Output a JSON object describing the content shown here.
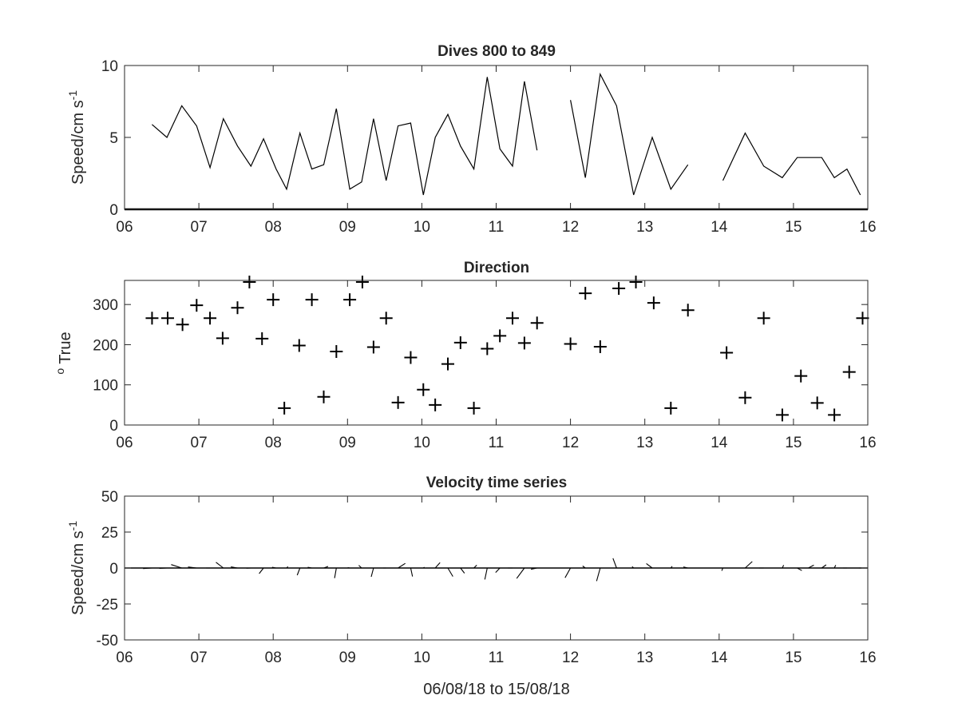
{
  "chart_data": [
    {
      "type": "line",
      "title": "Dives 800 to 849",
      "ylabel": "Speed/cm s",
      "ylabel_sup": "-1",
      "xlabel": "",
      "xlim": [
        6,
        16
      ],
      "ylim": [
        0,
        10
      ],
      "xticks": [
        "06",
        "07",
        "08",
        "09",
        "10",
        "11",
        "12",
        "13",
        "14",
        "15",
        "16"
      ],
      "yticks": [
        "0",
        "5",
        "10"
      ],
      "grid": false,
      "segments": [
        {
          "x": [
            6.37,
            6.57,
            6.77,
            6.97,
            7.15,
            7.33,
            7.52,
            7.7,
            7.87,
            8.04,
            8.18,
            8.36,
            8.52,
            8.68,
            8.85,
            9.03,
            9.19,
            9.35,
            9.52,
            9.68,
            9.85,
            10.02,
            10.18,
            10.35,
            10.52,
            10.7,
            10.88,
            11.05,
            11.22,
            11.38,
            11.55
          ],
          "y": [
            5.9,
            5.0,
            7.2,
            5.8,
            2.9,
            6.3,
            4.4,
            3.0,
            4.9,
            2.8,
            1.4,
            5.3,
            2.8,
            3.1,
            7.0,
            1.4,
            1.9,
            6.3,
            2.0,
            5.8,
            6.0,
            1.0,
            5.0,
            6.6,
            4.4,
            2.8,
            9.2,
            4.2,
            3.0,
            8.9,
            4.1
          ]
        },
        {
          "x": [
            12.0,
            12.2,
            12.4,
            12.62,
            12.85,
            13.1,
            13.35,
            13.58
          ],
          "y": [
            7.6,
            2.2,
            9.4,
            7.2,
            1.0,
            5.0,
            1.4,
            3.1
          ]
        },
        {
          "x": [
            14.05,
            14.35,
            14.6,
            14.85,
            15.05,
            15.2,
            15.38,
            15.55,
            15.72,
            15.9
          ],
          "y": [
            2.0,
            5.3,
            3.0,
            2.2,
            3.6,
            3.6,
            3.6,
            2.2,
            2.8,
            1.0
          ]
        }
      ]
    },
    {
      "type": "scatter",
      "title": "Direction",
      "ylabel": "True",
      "ylabel_sup": "o",
      "xlabel": "",
      "xlim": [
        6,
        16
      ],
      "ylim": [
        0,
        360
      ],
      "xticks": [
        "06",
        "07",
        "08",
        "09",
        "10",
        "11",
        "12",
        "13",
        "14",
        "15",
        "16"
      ],
      "yticks": [
        "0",
        "100",
        "200",
        "300"
      ],
      "grid": false,
      "x": [
        6.37,
        6.58,
        6.78,
        6.97,
        7.15,
        7.32,
        7.52,
        7.68,
        7.85,
        8.0,
        8.15,
        8.35,
        8.52,
        8.68,
        8.85,
        9.03,
        9.2,
        9.35,
        9.52,
        9.68,
        9.85,
        10.02,
        10.18,
        10.35,
        10.52,
        10.7,
        10.88,
        11.05,
        11.22,
        11.38,
        11.55,
        12.0,
        12.2,
        12.4,
        12.65,
        12.88,
        13.12,
        13.35,
        13.58,
        14.1,
        14.35,
        14.6,
        14.85,
        15.1,
        15.32,
        15.55,
        15.75,
        15.93
      ],
      "y": [
        266,
        266,
        250,
        298,
        266,
        216,
        292,
        356,
        215,
        312,
        42,
        198,
        312,
        70,
        183,
        312,
        356,
        194,
        266,
        56,
        168,
        88,
        50,
        152,
        205,
        42,
        190,
        222,
        266,
        204,
        254,
        202,
        328,
        195,
        340,
        356,
        304,
        42,
        286,
        180,
        68,
        266,
        25,
        122,
        55,
        25,
        132,
        266
      ]
    },
    {
      "type": "quiver",
      "title": "Velocity time series",
      "ylabel": "Speed/cm s",
      "ylabel_sup": "-1",
      "xlabel": "06/08/18 to 15/08/18",
      "xlim": [
        6,
        16
      ],
      "ylim": [
        -50,
        50
      ],
      "xticks": [
        "06",
        "07",
        "08",
        "09",
        "10",
        "11",
        "12",
        "13",
        "14",
        "15",
        "16"
      ],
      "yticks": [
        "50",
        "25",
        "0",
        "-25",
        "-50"
      ],
      "grid": false,
      "x": [
        6.37,
        6.57,
        6.77,
        6.97,
        7.15,
        7.33,
        7.52,
        7.7,
        7.87,
        8.04,
        8.18,
        8.36,
        8.52,
        8.68,
        8.85,
        9.03,
        9.19,
        9.35,
        9.52,
        9.68,
        9.85,
        10.02,
        10.18,
        10.35,
        10.52,
        10.7,
        10.88,
        11.05,
        11.22,
        11.38,
        11.55,
        12.0,
        12.2,
        12.4,
        12.62,
        12.85,
        13.1,
        13.35,
        13.58,
        14.05,
        14.35,
        14.6,
        14.85,
        15.05,
        15.2,
        15.38,
        15.55,
        15.72,
        15.9
      ],
      "u": [
        -5.9,
        -5.0,
        -7.0,
        -5.7,
        -2.6,
        -4.9,
        -4.4,
        -3.0,
        -2.9,
        -2.7,
        0.9,
        -1.8,
        -2.7,
        2.9,
        -1.2,
        -1.3,
        -1.9,
        -1.5,
        -2.0,
        4.8,
        1.2,
        0.7,
        3.2,
        3.3,
        2.6,
        1.9,
        -1.6,
        -2.8,
        -3.0,
        -5.1,
        -4.0,
        -3.6,
        -1.8,
        -2.4,
        -2.4,
        -1.0,
        -3.9,
        0.9,
        -3.0,
        -0.7,
        4.7,
        -3.0,
        0.9,
        3.1,
        3.6,
        2.9,
        0.9,
        -2.5,
        -1.0
      ],
      "v": [
        -0.4,
        -0.3,
        2.4,
        0.7,
        0.0,
        4.0,
        0.8,
        -0.1,
        -3.9,
        0.5,
        1.0,
        -5.0,
        0.5,
        1.1,
        -7.0,
        0.3,
        1.9,
        -6.1,
        0.0,
        3.2,
        -5.9,
        0.6,
        3.8,
        -5.9,
        -3.6,
        2.0,
        -8.0,
        -3.1,
        0.0,
        -7.3,
        -0.9,
        -6.8,
        1.4,
        -9.1,
        6.8,
        1.0,
        3.1,
        1.2,
        0.8,
        -1.9,
        4.5,
        0.0,
        2.0,
        -1.8,
        2.0,
        2.2,
        2.0,
        0.0,
        0.0
      ]
    }
  ]
}
